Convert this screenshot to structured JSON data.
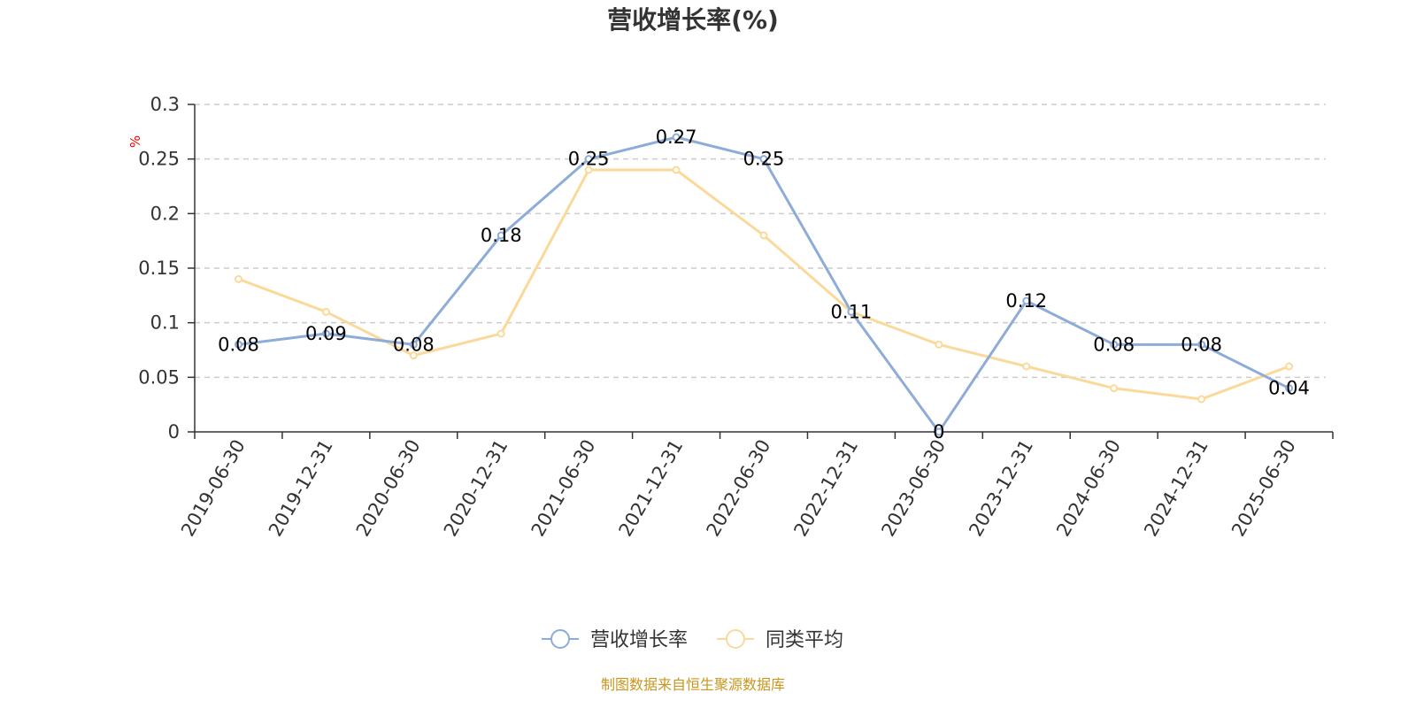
{
  "chart_data": {
    "type": "line",
    "title": "营收增长率(%)",
    "ylabel": "%",
    "xlabel": "",
    "ylim": [
      0,
      0.3
    ],
    "yticks": [
      "0",
      "0.05",
      "0.1",
      "0.15",
      "0.2",
      "0.25",
      "0.3"
    ],
    "grid": true,
    "legend_position": "bottom-center",
    "categories": [
      "2019-06-30",
      "2019-12-31",
      "2020-06-30",
      "2020-12-31",
      "2021-06-30",
      "2021-12-31",
      "2022-06-30",
      "2022-12-31",
      "2023-06-30",
      "2023-12-31",
      "2024-06-30",
      "2024-12-31",
      "2025-06-30"
    ],
    "series": [
      {
        "name": "营收增长率",
        "color": "#8eacd8",
        "values": [
          0.08,
          0.09,
          0.08,
          0.18,
          0.25,
          0.27,
          0.25,
          0.11,
          0,
          0.12,
          0.08,
          0.08,
          0.04
        ],
        "labels": [
          "0.08",
          "0.09",
          "0.08",
          "0.18",
          "0.25",
          "0.27",
          "0.25",
          "0.11",
          "0",
          "0.12",
          "0.08",
          "0.08",
          "0.04"
        ]
      },
      {
        "name": "同类平均",
        "color": "#fad99a",
        "values": [
          0.14,
          0.11,
          0.07,
          0.09,
          0.24,
          0.24,
          0.18,
          0.11,
          0.08,
          0.06,
          0.04,
          0.03,
          0.06
        ]
      }
    ]
  },
  "footer": {
    "source": "制图数据来自恒生聚源数据库"
  }
}
